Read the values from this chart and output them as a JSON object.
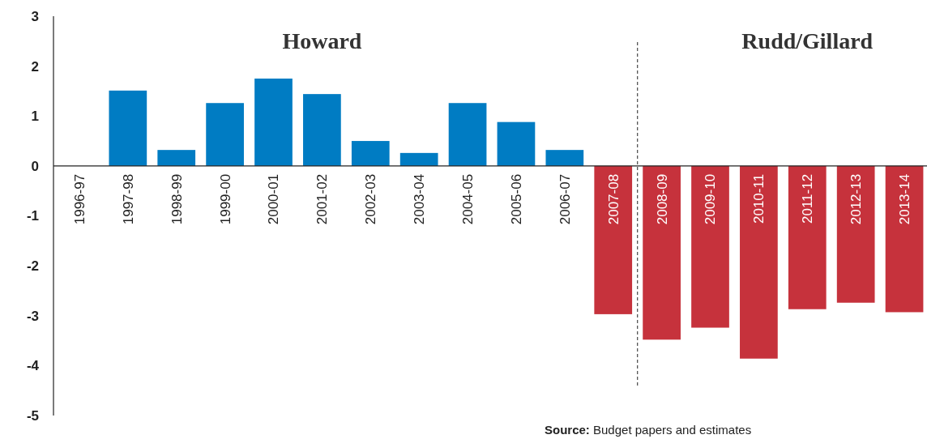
{
  "chart_data": {
    "type": "bar",
    "categories": [
      "1996-97",
      "1997-98",
      "1998-99",
      "1999-00",
      "2000-01",
      "2001-02",
      "2002-03",
      "2003-04",
      "2004-05",
      "2005-06",
      "2006-07",
      "2007-08",
      "2008-09",
      "2009-10",
      "2010-11",
      "2011-12",
      "2012-13",
      "2013-14"
    ],
    "values": [
      0,
      1.51,
      0.32,
      1.26,
      1.75,
      1.44,
      0.5,
      0.26,
      1.26,
      0.88,
      0.32,
      -2.97,
      -3.48,
      -3.24,
      -3.86,
      -2.87,
      -2.74,
      -2.93
    ],
    "colors": [
      "#007cc3",
      "#007cc3",
      "#007cc3",
      "#007cc3",
      "#007cc3",
      "#007cc3",
      "#007cc3",
      "#007cc3",
      "#007cc3",
      "#007cc3",
      "#007cc3",
      "#c6323c",
      "#c6323c",
      "#c6323c",
      "#c6323c",
      "#c6323c",
      "#c6323c",
      "#c6323c"
    ],
    "ylim": [
      -5,
      3
    ],
    "yticks": [
      -5,
      -4,
      -3,
      -2,
      -1,
      0,
      1,
      2,
      3
    ],
    "grid": false,
    "annotations": [
      "Howard",
      "Rudd/Gillard",
      "Source: Budget papers and estimates"
    ]
  }
}
